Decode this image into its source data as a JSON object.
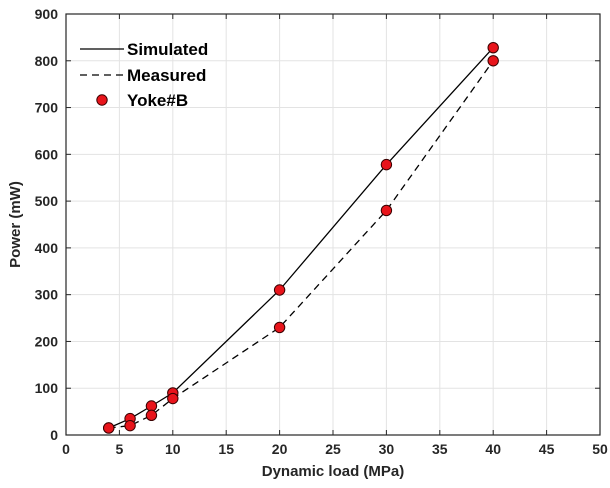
{
  "chart_data": {
    "type": "line",
    "xlabel": "Dynamic load (MPa)",
    "ylabel": "Power (mW)",
    "xlim": [
      0,
      50
    ],
    "ylim": [
      0,
      900
    ],
    "xticks": [
      0,
      5,
      10,
      15,
      20,
      25,
      30,
      35,
      40,
      45,
      50
    ],
    "yticks": [
      0,
      100,
      200,
      300,
      400,
      500,
      600,
      700,
      800,
      900
    ],
    "grid": true,
    "legend_position": "top-left",
    "series": [
      {
        "name": "Simulated",
        "style": "solid",
        "color": "#000000",
        "x": [
          4,
          6,
          8,
          10,
          20,
          30,
          40
        ],
        "y": [
          15,
          35,
          62,
          90,
          310,
          578,
          828
        ]
      },
      {
        "name": "Measured",
        "style": "dashed",
        "color": "#000000",
        "x": [
          4,
          6,
          8,
          10,
          20,
          30,
          40
        ],
        "y": [
          15,
          20,
          42,
          78,
          230,
          480,
          800
        ]
      },
      {
        "name": "Yoke#B",
        "style": "markers",
        "color": "#e8141b",
        "edge_color": "#3a0000",
        "x": [
          4,
          6,
          8,
          10,
          20,
          30,
          40,
          4,
          6,
          8,
          10,
          20,
          30,
          40
        ],
        "y": [
          15,
          35,
          62,
          90,
          310,
          578,
          828,
          15,
          20,
          42,
          78,
          230,
          480,
          800
        ]
      }
    ]
  }
}
